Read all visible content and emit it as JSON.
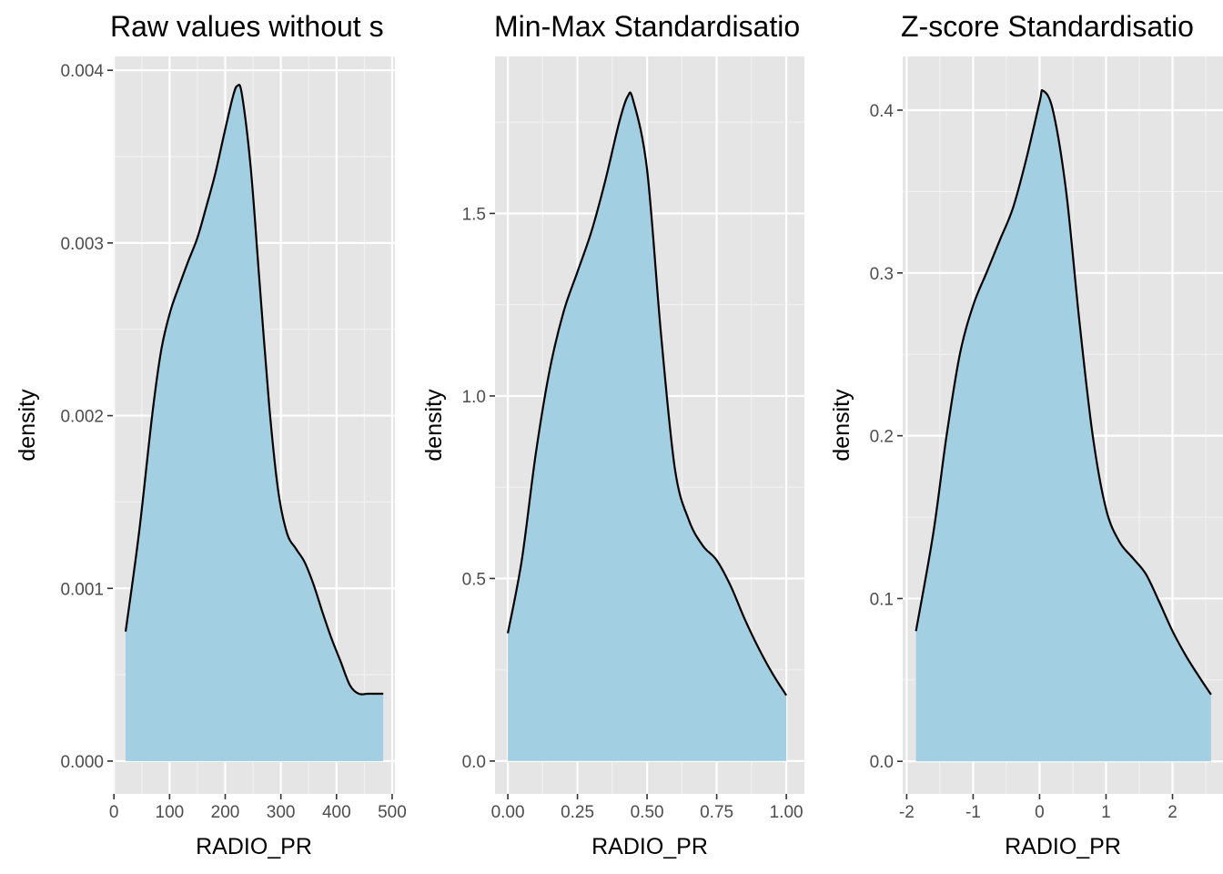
{
  "chart_data": [
    {
      "type": "area",
      "title": "Raw values without s",
      "xlabel": "RADIO_PR",
      "ylabel": "density",
      "xlim": [
        -2,
        505
      ],
      "ylim": [
        -0.00019,
        0.00408
      ],
      "x_ticks": [
        0,
        100,
        200,
        300,
        400,
        500
      ],
      "x_tick_labels": [
        "0",
        "100",
        "200",
        "300",
        "400",
        "500"
      ],
      "y_ticks": [
        0,
        0.001,
        0.002,
        0.003,
        0.004
      ],
      "y_tick_labels": [
        "0.000",
        "0.001",
        "0.002",
        "0.003",
        "0.004"
      ],
      "grid": true,
      "fill_color": "#a2cfe1",
      "line_color": "#000000",
      "series": [
        {
          "x": [
            21,
            45,
            69,
            85,
            101,
            117,
            133,
            150,
            166,
            182,
            198,
            214,
            222,
            230,
            246,
            262,
            279,
            295,
            311,
            327,
            343,
            359,
            375,
            391,
            407,
            424,
            440,
            456,
            472,
            484
          ],
          "y": [
            0.00075,
            0.00132,
            0.00201,
            0.00238,
            0.0026,
            0.00275,
            0.00289,
            0.00303,
            0.00321,
            0.0034,
            0.00363,
            0.00385,
            0.00391,
            0.00386,
            0.00343,
            0.00276,
            0.00206,
            0.00157,
            0.00132,
            0.00123,
            0.00115,
            0.00102,
            0.00086,
            0.00071,
            0.00058,
            0.00044,
            0.00039,
            0.00039,
            0.00039,
            0.00039
          ]
        }
      ]
    },
    {
      "type": "area",
      "title": "Min-Max Standardisatio",
      "xlabel": "RADIO_PR",
      "ylabel": "density",
      "xlim": [
        -0.046,
        1.065
      ],
      "ylim": [
        -0.09,
        1.93
      ],
      "x_ticks": [
        0,
        0.25,
        0.5,
        0.75,
        1
      ],
      "x_tick_labels": [
        "0.00",
        "0.25",
        "0.50",
        "0.75",
        "1.00"
      ],
      "y_ticks": [
        0,
        0.5,
        1,
        1.5
      ],
      "y_tick_labels": [
        "0.0",
        "0.5",
        "1.0",
        "1.5"
      ],
      "grid": true,
      "fill_color": "#a2cfe1",
      "line_color": "#000000",
      "series": [
        {
          "x": [
            0.0,
            0.05,
            0.1,
            0.15,
            0.2,
            0.25,
            0.3,
            0.35,
            0.4,
            0.43,
            0.45,
            0.5,
            0.55,
            0.6,
            0.65,
            0.7,
            0.75,
            0.8,
            0.85,
            0.9,
            0.95,
            1.0
          ],
          "y": [
            0.35,
            0.55,
            0.84,
            1.07,
            1.23,
            1.34,
            1.45,
            1.59,
            1.75,
            1.82,
            1.81,
            1.62,
            1.17,
            0.8,
            0.66,
            0.59,
            0.55,
            0.48,
            0.39,
            0.31,
            0.24,
            0.18
          ]
        }
      ]
    },
    {
      "type": "area",
      "title": "Z-score Standardisatio",
      "xlabel": "RADIO_PR",
      "ylabel": "density",
      "xlim": [
        -2.06,
        2.76
      ],
      "ylim": [
        -0.02,
        0.433
      ],
      "x_ticks": [
        -2,
        -1,
        0,
        1,
        2
      ],
      "x_tick_labels": [
        "-2",
        "-1",
        "0",
        "1",
        "2"
      ],
      "y_ticks": [
        0,
        0.1,
        0.2,
        0.3,
        0.4
      ],
      "y_tick_labels": [
        "0.0",
        "0.1",
        "0.2",
        "0.3",
        "0.4"
      ],
      "grid": true,
      "fill_color": "#a2cfe1",
      "line_color": "#000000",
      "series": [
        {
          "x": [
            -1.86,
            -1.6,
            -1.4,
            -1.2,
            -1.0,
            -0.8,
            -0.6,
            -0.4,
            -0.2,
            0.0,
            0.05,
            0.2,
            0.4,
            0.6,
            0.8,
            1.0,
            1.2,
            1.4,
            1.6,
            1.8,
            2.0,
            2.2,
            2.4,
            2.58
          ],
          "y": [
            0.08,
            0.14,
            0.2,
            0.25,
            0.28,
            0.3,
            0.32,
            0.34,
            0.37,
            0.405,
            0.412,
            0.4,
            0.35,
            0.27,
            0.2,
            0.155,
            0.135,
            0.125,
            0.115,
            0.098,
            0.08,
            0.065,
            0.052,
            0.041
          ]
        }
      ]
    }
  ]
}
